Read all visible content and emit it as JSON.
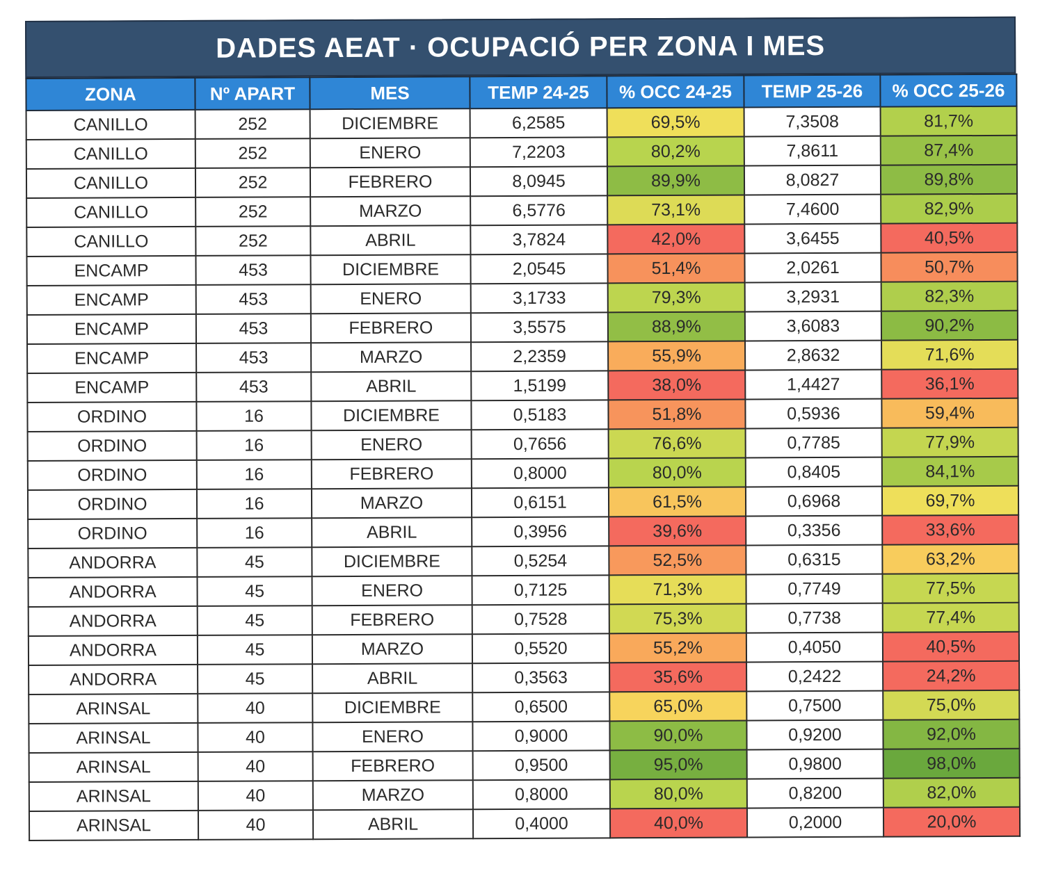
{
  "title": "DADES AEAT · OCUPACIÓ PER ZONA I MES",
  "headers": [
    "ZONA",
    "Nº APART",
    "MES",
    "TEMP 24-25",
    "% OCC 24-25",
    "TEMP 25-26",
    "% OCC 25-26"
  ],
  "rows": [
    {
      "zona": "CANILLO",
      "apart": "252",
      "mes": "DICIEMBRE",
      "temp1": "6,2585",
      "occ1": "69,5%",
      "temp2": "7,3508",
      "occ2": "81,7%"
    },
    {
      "zona": "CANILLO",
      "apart": "252",
      "mes": "ENERO",
      "temp1": "7,2203",
      "occ1": "80,2%",
      "temp2": "7,8611",
      "occ2": "87,4%"
    },
    {
      "zona": "CANILLO",
      "apart": "252",
      "mes": "FEBRERO",
      "temp1": "8,0945",
      "occ1": "89,9%",
      "temp2": "8,0827",
      "occ2": "89,8%"
    },
    {
      "zona": "CANILLO",
      "apart": "252",
      "mes": "MARZO",
      "temp1": "6,5776",
      "occ1": "73,1%",
      "temp2": "7,4600",
      "occ2": "82,9%"
    },
    {
      "zona": "CANILLO",
      "apart": "252",
      "mes": "ABRIL",
      "temp1": "3,7824",
      "occ1": "42,0%",
      "temp2": "3,6455",
      "occ2": "40,5%"
    },
    {
      "zona": "ENCAMP",
      "apart": "453",
      "mes": "DICIEMBRE",
      "temp1": "2,0545",
      "occ1": "51,4%",
      "temp2": "2,0261",
      "occ2": "50,7%"
    },
    {
      "zona": "ENCAMP",
      "apart": "453",
      "mes": "ENERO",
      "temp1": "3,1733",
      "occ1": "79,3%",
      "temp2": "3,2931",
      "occ2": "82,3%"
    },
    {
      "zona": "ENCAMP",
      "apart": "453",
      "mes": "FEBRERO",
      "temp1": "3,5575",
      "occ1": "88,9%",
      "temp2": "3,6083",
      "occ2": "90,2%"
    },
    {
      "zona": "ENCAMP",
      "apart": "453",
      "mes": "MARZO",
      "temp1": "2,2359",
      "occ1": "55,9%",
      "temp2": "2,8632",
      "occ2": "71,6%"
    },
    {
      "zona": "ENCAMP",
      "apart": "453",
      "mes": "ABRIL",
      "temp1": "1,5199",
      "occ1": "38,0%",
      "temp2": "1,4427",
      "occ2": "36,1%"
    },
    {
      "zona": "ORDINO",
      "apart": "16",
      "mes": "DICIEMBRE",
      "temp1": "0,5183",
      "occ1": "51,8%",
      "temp2": "0,5936",
      "occ2": "59,4%"
    },
    {
      "zona": "ORDINO",
      "apart": "16",
      "mes": "ENERO",
      "temp1": "0,7656",
      "occ1": "76,6%",
      "temp2": "0,7785",
      "occ2": "77,9%"
    },
    {
      "zona": "ORDINO",
      "apart": "16",
      "mes": "FEBRERO",
      "temp1": "0,8000",
      "occ1": "80,0%",
      "temp2": "0,8405",
      "occ2": "84,1%"
    },
    {
      "zona": "ORDINO",
      "apart": "16",
      "mes": "MARZO",
      "temp1": "0,6151",
      "occ1": "61,5%",
      "temp2": "0,6968",
      "occ2": "69,7%"
    },
    {
      "zona": "ORDINO",
      "apart": "16",
      "mes": "ABRIL",
      "temp1": "0,3956",
      "occ1": "39,6%",
      "temp2": "0,3356",
      "occ2": "33,6%"
    },
    {
      "zona": "ANDORRA",
      "apart": "45",
      "mes": "DICIEMBRE",
      "temp1": "0,5254",
      "occ1": "52,5%",
      "temp2": "0,6315",
      "occ2": "63,2%"
    },
    {
      "zona": "ANDORRA",
      "apart": "45",
      "mes": "ENERO",
      "temp1": "0,7125",
      "occ1": "71,3%",
      "temp2": "0,7749",
      "occ2": "77,5%"
    },
    {
      "zona": "ANDORRA",
      "apart": "45",
      "mes": "FEBRERO",
      "temp1": "0,7528",
      "occ1": "75,3%",
      "temp2": "0,7738",
      "occ2": "77,4%"
    },
    {
      "zona": "ANDORRA",
      "apart": "45",
      "mes": "MARZO",
      "temp1": "0,5520",
      "occ1": "55,2%",
      "temp2": "0,4050",
      "occ2": "40,5%"
    },
    {
      "zona": "ANDORRA",
      "apart": "45",
      "mes": "ABRIL",
      "temp1": "0,3563",
      "occ1": "35,6%",
      "temp2": "0,2422",
      "occ2": "24,2%"
    },
    {
      "zona": "ARINSAL",
      "apart": "40",
      "mes": "DICIEMBRE",
      "temp1": "0,6500",
      "occ1": "65,0%",
      "temp2": "0,7500",
      "occ2": "75,0%"
    },
    {
      "zona": "ARINSAL",
      "apart": "40",
      "mes": "ENERO",
      "temp1": "0,9000",
      "occ1": "90,0%",
      "temp2": "0,9200",
      "occ2": "92,0%"
    },
    {
      "zona": "ARINSAL",
      "apart": "40",
      "mes": "FEBRERO",
      "temp1": "0,9500",
      "occ1": "95,0%",
      "temp2": "0,9800",
      "occ2": "98,0%"
    },
    {
      "zona": "ARINSAL",
      "apart": "40",
      "mes": "MARZO",
      "temp1": "0,8000",
      "occ1": "80,0%",
      "temp2": "0,8200",
      "occ2": "82,0%"
    },
    {
      "zona": "ARINSAL",
      "apart": "40",
      "mes": "ABRIL",
      "temp1": "0,4000",
      "occ1": "40,0%",
      "temp2": "0,2000",
      "occ2": "20,0%"
    }
  ],
  "colors": {
    "title_bg": "#34506f",
    "header_bg": "#2f86d6",
    "scale_low": "#f46a5e",
    "scale_mid_low": "#f9a85b",
    "scale_mid": "#f7e15c",
    "scale_mid_high": "#b9d44e",
    "scale_high": "#6aa83d"
  }
}
